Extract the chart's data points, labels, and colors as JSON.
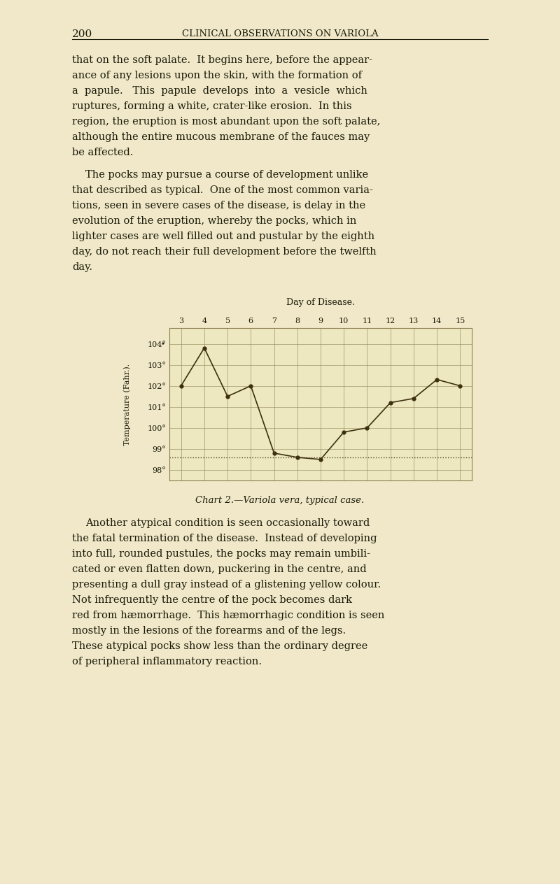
{
  "page_bg": "#f0e8c8",
  "chart_bg": "#ede8c0",
  "page_number": "200",
  "header": "CLINICAL OBSERVATIONS ON VARIOLA",
  "body_text_top": [
    "that on the soft palate.  It begins here, before the appear-",
    "ance of any lesions upon the skin, with the formation of",
    "a  papule.   This  papule  develops  into  a  vesicle  which",
    "ruptures, forming a white, crater-like erosion.  In this",
    "region, the eruption is most abundant upon the soft palate,",
    "although the entire mucous membrane of the fauces may",
    "be affected."
  ],
  "body_text_mid": [
    "The pocks may pursue a course of development unlike",
    "that described as typical.  One of the most common varia-",
    "tions, seen in severe cases of the disease, is delay in the",
    "evolution of the eruption, whereby the pocks, which in",
    "lighter cases are well filled out and pustular by the eighth",
    "day, do not reach their full development before the twelfth",
    "day."
  ],
  "chart_title": "Day of Disease.",
  "x_label_days": [
    3,
    4,
    5,
    6,
    7,
    8,
    9,
    10,
    11,
    12,
    13,
    14,
    15
  ],
  "y_ticks": [
    98,
    99,
    100,
    101,
    102,
    103,
    104
  ],
  "y_tick_labels": [
    "98°",
    "99°",
    "100°",
    "101°",
    "102°",
    "103°",
    "104°"
  ],
  "ylabel": "Temperature (Fahr.).",
  "temp_days": [
    3,
    4,
    5,
    6,
    7,
    8,
    9,
    10,
    11,
    12,
    13,
    14,
    15
  ],
  "temp_vals": [
    102.0,
    103.8,
    101.5,
    102.0,
    98.8,
    98.6,
    98.5,
    99.8,
    100.0,
    101.2,
    101.4,
    102.3,
    102.0
  ],
  "dotted_line_y": 98.6,
  "chart_caption": "Chart 2.—Variola vera, typical case.",
  "body_text_bot": [
    "Another atypical condition is seen occasionally toward",
    "the fatal termination of the disease.  Instead of developing",
    "into full, rounded pustules, the pocks may remain umbili-",
    "cated or even flatten down, puckering in the centre, and",
    "presenting a dull gray instead of a glistening yellow colour.",
    "Not infrequently the centre of the pock becomes dark",
    "red from hæmorrhage.  This hæmorrhagic condition is seen",
    "mostly in the lesions of the forearms and of the legs.",
    "These atypical pocks show less than the ordinary degree",
    "of peripheral inflammatory reaction."
  ],
  "line_color": "#3d3010",
  "grid_color": "#8b7d50",
  "text_color": "#1a1a0a",
  "caption_color": "#1a1a0a"
}
